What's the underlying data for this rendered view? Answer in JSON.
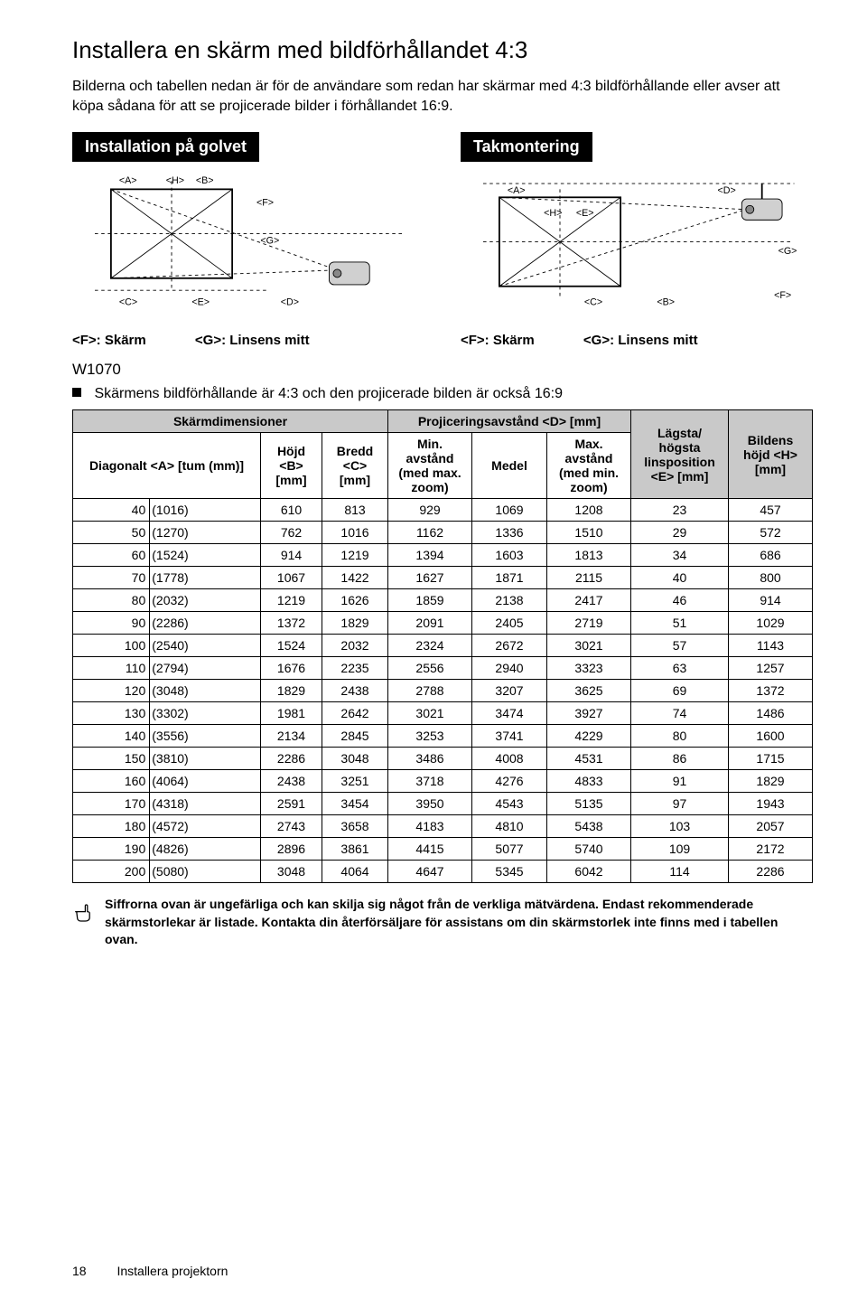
{
  "title": "Installera en skärm med bildförhållandet 4:3",
  "intro": "Bilderna och tabellen nedan är för de användare som redan har skärmar med 4:3 bildförhållande eller avser att köpa sådana för att se projicerade bilder i förhållandet 16:9.",
  "floor": {
    "title": "Installation på golvet",
    "captionF": "<F>: Skärm",
    "captionG": "<G>: Linsens mitt",
    "labels": {
      "A": "<A>",
      "B": "<B>",
      "C": "<C>",
      "D": "<D>",
      "E": "<E>",
      "F": "<F>",
      "G": "<G>",
      "H": "<H>"
    }
  },
  "ceiling": {
    "title": "Takmontering",
    "captionF": "<F>: Skärm",
    "captionG": "<G>: Linsens mitt",
    "labels": {
      "A": "<A>",
      "B": "<B>",
      "C": "<C>",
      "D": "<D>",
      "E": "<E>",
      "F": "<F>",
      "G": "<G>",
      "H": "<H>"
    }
  },
  "model": "W1070",
  "bullet": "Skärmens bildförhållande är 4:3 och den projicerade bilden är också 16:9",
  "tableHeaders": {
    "skarmdim": "Skärmdimensioner",
    "proj": "Projiceringsavstånd <D> [mm]",
    "diag": "Diagonalt <A> [tum (mm)]",
    "hojd": "Höjd <B> [mm]",
    "bredd": "Bredd <C> [mm]",
    "min": "Min. avstånd (med max. zoom)",
    "medel": "Medel",
    "max": "Max. avstånd (med min. zoom)",
    "lins": "Lägsta/ högsta linsposition <E> [mm]",
    "bild": "Bildens höjd <H> [mm]"
  },
  "rows": [
    {
      "tum": "40",
      "mm": "(1016)",
      "h": "610",
      "b": "813",
      "min": "929",
      "med": "1069",
      "max": "1208",
      "e": "23",
      "hh": "457"
    },
    {
      "tum": "50",
      "mm": "(1270)",
      "h": "762",
      "b": "1016",
      "min": "1162",
      "med": "1336",
      "max": "1510",
      "e": "29",
      "hh": "572"
    },
    {
      "tum": "60",
      "mm": "(1524)",
      "h": "914",
      "b": "1219",
      "min": "1394",
      "med": "1603",
      "max": "1813",
      "e": "34",
      "hh": "686"
    },
    {
      "tum": "70",
      "mm": "(1778)",
      "h": "1067",
      "b": "1422",
      "min": "1627",
      "med": "1871",
      "max": "2115",
      "e": "40",
      "hh": "800"
    },
    {
      "tum": "80",
      "mm": "(2032)",
      "h": "1219",
      "b": "1626",
      "min": "1859",
      "med": "2138",
      "max": "2417",
      "e": "46",
      "hh": "914"
    },
    {
      "tum": "90",
      "mm": "(2286)",
      "h": "1372",
      "b": "1829",
      "min": "2091",
      "med": "2405",
      "max": "2719",
      "e": "51",
      "hh": "1029"
    },
    {
      "tum": "100",
      "mm": "(2540)",
      "h": "1524",
      "b": "2032",
      "min": "2324",
      "med": "2672",
      "max": "3021",
      "e": "57",
      "hh": "1143"
    },
    {
      "tum": "110",
      "mm": "(2794)",
      "h": "1676",
      "b": "2235",
      "min": "2556",
      "med": "2940",
      "max": "3323",
      "e": "63",
      "hh": "1257"
    },
    {
      "tum": "120",
      "mm": "(3048)",
      "h": "1829",
      "b": "2438",
      "min": "2788",
      "med": "3207",
      "max": "3625",
      "e": "69",
      "hh": "1372"
    },
    {
      "tum": "130",
      "mm": "(3302)",
      "h": "1981",
      "b": "2642",
      "min": "3021",
      "med": "3474",
      "max": "3927",
      "e": "74",
      "hh": "1486"
    },
    {
      "tum": "140",
      "mm": "(3556)",
      "h": "2134",
      "b": "2845",
      "min": "3253",
      "med": "3741",
      "max": "4229",
      "e": "80",
      "hh": "1600"
    },
    {
      "tum": "150",
      "mm": "(3810)",
      "h": "2286",
      "b": "3048",
      "min": "3486",
      "med": "4008",
      "max": "4531",
      "e": "86",
      "hh": "1715"
    },
    {
      "tum": "160",
      "mm": "(4064)",
      "h": "2438",
      "b": "3251",
      "min": "3718",
      "med": "4276",
      "max": "4833",
      "e": "91",
      "hh": "1829"
    },
    {
      "tum": "170",
      "mm": "(4318)",
      "h": "2591",
      "b": "3454",
      "min": "3950",
      "med": "4543",
      "max": "5135",
      "e": "97",
      "hh": "1943"
    },
    {
      "tum": "180",
      "mm": "(4572)",
      "h": "2743",
      "b": "3658",
      "min": "4183",
      "med": "4810",
      "max": "5438",
      "e": "103",
      "hh": "2057"
    },
    {
      "tum": "190",
      "mm": "(4826)",
      "h": "2896",
      "b": "3861",
      "min": "4415",
      "med": "5077",
      "max": "5740",
      "e": "109",
      "hh": "2172"
    },
    {
      "tum": "200",
      "mm": "(5080)",
      "h": "3048",
      "b": "4064",
      "min": "4647",
      "med": "5345",
      "max": "6042",
      "e": "114",
      "hh": "2286"
    }
  ],
  "note": "Siffrorna ovan är ungefärliga och kan skilja sig något från de verkliga mätvärdena. Endast rekommenderade skärmstorlekar är listade. Kontakta din återförsäljare för assistans om din skärmstorlek inte finns med i tabellen ovan.",
  "footer": {
    "page": "18",
    "section": "Installera projektorn"
  },
  "colors": {
    "shade": "#c9c9c9",
    "bg": "#ffffff",
    "text": "#000000"
  }
}
